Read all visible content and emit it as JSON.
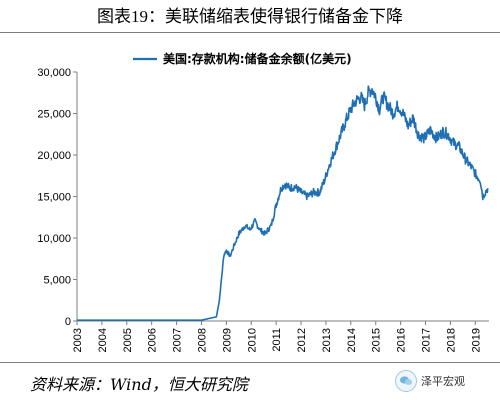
{
  "figure_title": "图表19：美联储缩表使得银行储备金下降",
  "source_note": "资料来源：Wind，恒大研究院",
  "watermark_text": "泽平宏观",
  "chart_data": {
    "type": "line",
    "title": "",
    "xlabel": "",
    "ylabel": "",
    "ylim": [
      0,
      30000
    ],
    "xlim": [
      2003.0,
      2019.55
    ],
    "y_ticks": [
      0,
      5000,
      10000,
      15000,
      20000,
      25000,
      30000
    ],
    "y_tick_labels": [
      "0",
      "5,000",
      "10,000",
      "15,000",
      "20,000",
      "25,000",
      "30,000"
    ],
    "x_ticks": [
      2003,
      2004,
      2005,
      2006,
      2007,
      2008,
      2009,
      2010,
      2011,
      2012,
      2013,
      2014,
      2015,
      2016,
      2017,
      2018,
      2019
    ],
    "x_tick_labels": [
      "2003",
      "2004",
      "2005",
      "2006",
      "2007",
      "2008",
      "2009",
      "2010",
      "2011",
      "2012",
      "2013",
      "2014",
      "2015",
      "2016",
      "2017",
      "2018",
      "2019"
    ],
    "legend_position": "top-center",
    "grid": false,
    "series": [
      {
        "name": "美国:存款机构:储备金余额(亿美元)",
        "color": "#1f6fb4",
        "x": [
          2003.0,
          2005.0,
          2007.0,
          2008.0,
          2008.6,
          2008.72,
          2008.8,
          2008.9,
          2009.0,
          2009.15,
          2009.3,
          2009.5,
          2009.75,
          2009.95,
          2010.15,
          2010.35,
          2010.55,
          2010.8,
          2011.0,
          2011.2,
          2011.35,
          2011.55,
          2011.75,
          2012.0,
          2012.25,
          2012.5,
          2012.75,
          2012.95,
          2013.1,
          2013.35,
          2013.6,
          2013.85,
          2014.0,
          2014.2,
          2014.4,
          2014.55,
          2014.7,
          2014.85,
          2015.0,
          2015.15,
          2015.3,
          2015.5,
          2015.7,
          2015.9,
          2016.1,
          2016.3,
          2016.5,
          2016.7,
          2016.95,
          2017.2,
          2017.45,
          2017.7,
          2017.9,
          2018.1,
          2018.35,
          2018.6,
          2018.85,
          2019.05,
          2019.2,
          2019.3,
          2019.4,
          2019.5
        ],
        "y": [
          100,
          100,
          100,
          100,
          500,
          2500,
          5000,
          8000,
          8500,
          7800,
          9000,
          10500,
          11500,
          11000,
          12000,
          11000,
          10500,
          11500,
          14000,
          16000,
          16500,
          16000,
          16200,
          15500,
          15000,
          15500,
          15500,
          17000,
          18500,
          20500,
          22500,
          24500,
          25500,
          26500,
          27000,
          26000,
          27500,
          28000,
          27000,
          25500,
          27000,
          26000,
          25000,
          26000,
          25000,
          23500,
          24500,
          22500,
          22000,
          23000,
          22000,
          22800,
          22500,
          21500,
          21000,
          19500,
          18500,
          17500,
          17000,
          15000,
          15500,
          16000
        ]
      }
    ]
  }
}
